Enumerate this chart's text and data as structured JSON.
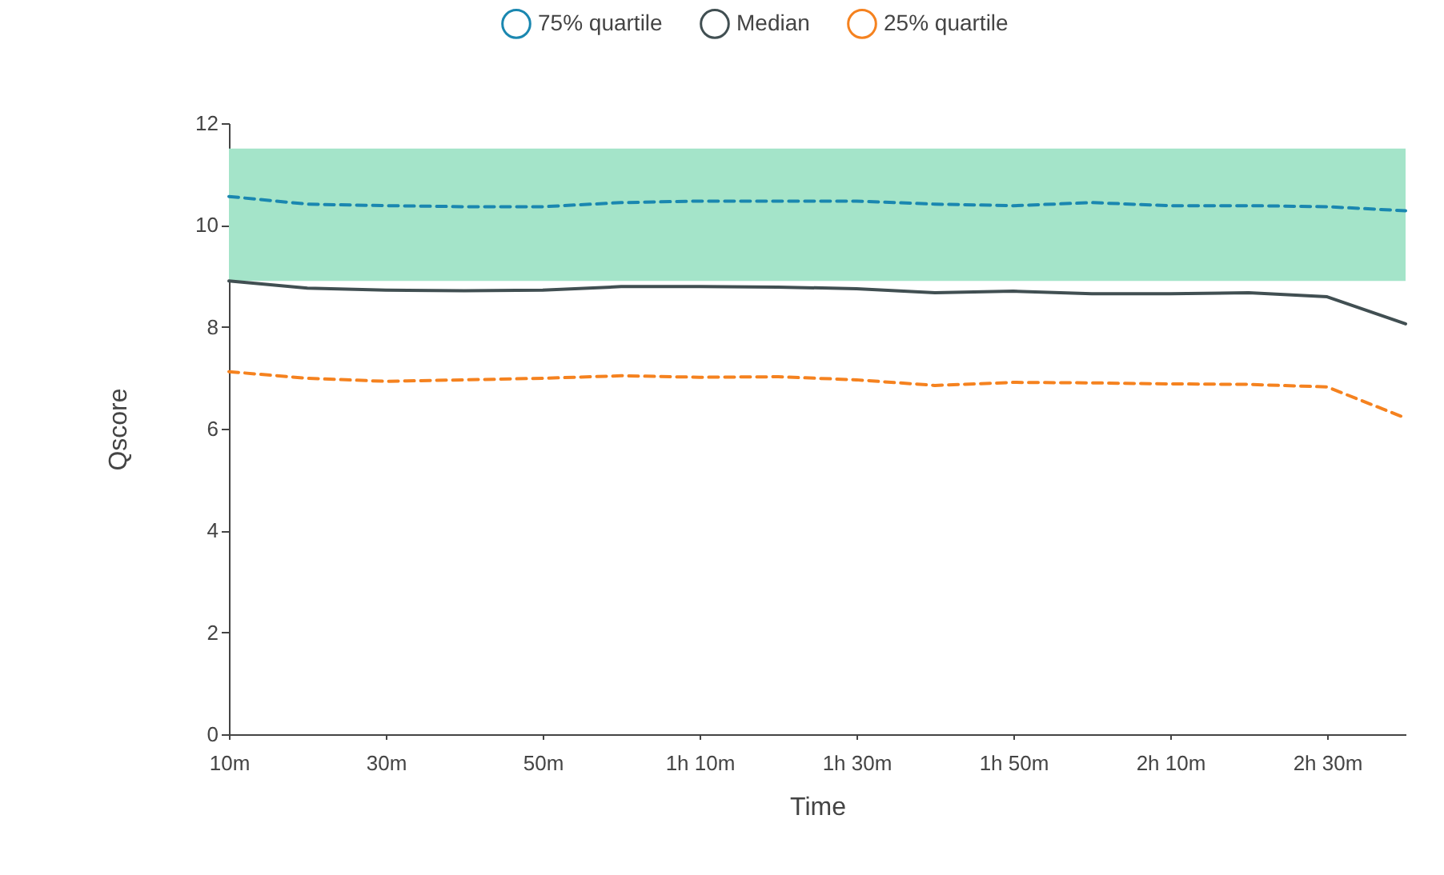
{
  "chart_data": {
    "type": "line",
    "xlabel": "Time",
    "ylabel": "Qscore",
    "x": [
      10,
      20,
      30,
      40,
      50,
      60,
      70,
      80,
      90,
      100,
      110,
      120,
      130,
      140,
      150,
      160
    ],
    "xlim": [
      10,
      160
    ],
    "xticks": [
      {
        "value": 10,
        "label": "10m"
      },
      {
        "value": 30,
        "label": "30m"
      },
      {
        "value": 50,
        "label": "50m"
      },
      {
        "value": 70,
        "label": "1h 10m"
      },
      {
        "value": 90,
        "label": "1h 30m"
      },
      {
        "value": 110,
        "label": "1h 50m"
      },
      {
        "value": 130,
        "label": "2h 10m"
      },
      {
        "value": 150,
        "label": "2h 30m"
      }
    ],
    "ylim": [
      0,
      12
    ],
    "yticks": [
      0,
      2,
      4,
      6,
      8,
      10,
      12
    ],
    "legend": "top",
    "marker": "none",
    "grid": false,
    "series": [
      {
        "name": "75% quartile",
        "color": "#1a87b0",
        "line_style": "dashed",
        "values": [
          10.56,
          10.41,
          10.38,
          10.36,
          10.36,
          10.44,
          10.47,
          10.47,
          10.47,
          10.41,
          10.38,
          10.44,
          10.38,
          10.38,
          10.36,
          10.28
        ]
      },
      {
        "name": "Median",
        "color": "#414f52",
        "line_style": "solid",
        "values": [
          8.9,
          8.76,
          8.72,
          8.71,
          8.72,
          8.79,
          8.79,
          8.78,
          8.75,
          8.67,
          8.7,
          8.65,
          8.65,
          8.67,
          8.59,
          8.06
        ]
      },
      {
        "name": "25% quartile",
        "color": "#f5821f",
        "line_style": "dashed",
        "values": [
          7.12,
          6.99,
          6.93,
          6.96,
          6.99,
          7.04,
          7.01,
          7.02,
          6.96,
          6.85,
          6.91,
          6.9,
          6.88,
          6.87,
          6.82,
          6.21
        ]
      }
    ],
    "bands": [
      {
        "axis": "y",
        "from": 8.9,
        "to": 11.5,
        "color": "#a4e4c9"
      }
    ]
  }
}
